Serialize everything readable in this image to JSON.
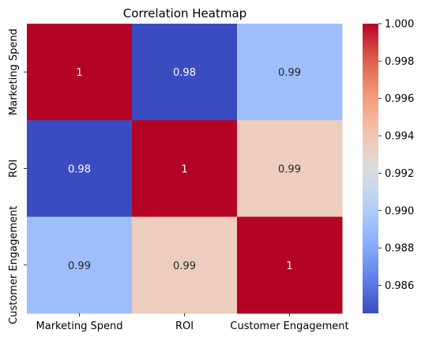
{
  "chart_data": {
    "type": "heatmap",
    "title": "Correlation Heatmap",
    "xlabel": "",
    "ylabel": "",
    "x_categories": [
      "Marketing Spend",
      "ROI",
      "Customer Engagement"
    ],
    "y_categories": [
      "Marketing Spend",
      "ROI",
      "Customer Engagement"
    ],
    "matrix": [
      [
        1.0,
        0.9845,
        0.9892
      ],
      [
        0.9845,
        1.0,
        0.9935
      ],
      [
        0.9892,
        0.9935,
        1.0
      ]
    ],
    "cell_labels": [
      [
        "1",
        "0.98",
        "0.99"
      ],
      [
        "0.98",
        "1",
        "0.99"
      ],
      [
        "0.99",
        "0.99",
        "1"
      ]
    ],
    "colormap": "coolwarm",
    "colorbar": {
      "range": [
        0.9845,
        1.0
      ],
      "ticks": [
        0.986,
        0.988,
        0.99,
        0.992,
        0.994,
        0.996,
        0.998,
        1.0
      ],
      "tick_labels": [
        "0.986",
        "0.988",
        "0.990",
        "0.992",
        "0.994",
        "0.996",
        "0.998",
        "1.000"
      ]
    }
  }
}
